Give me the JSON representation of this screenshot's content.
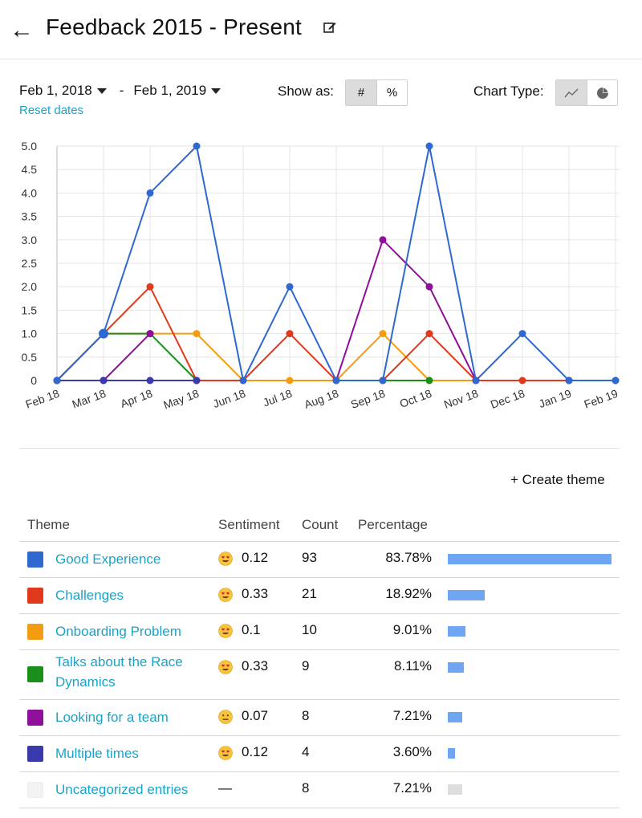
{
  "header": {
    "back_icon": "arrow-left-icon",
    "title": "Feedback 2015 - Present",
    "edit_icon": "edit-icon"
  },
  "controls": {
    "start_date": "Feb 1, 2018",
    "end_date": "Feb 1, 2019",
    "separator": "-",
    "reset_label": "Reset dates",
    "show_as_label": "Show as:",
    "show_as_options": [
      "#",
      "%"
    ],
    "show_as_selected": "#",
    "chart_type_label": "Chart Type:",
    "chart_type_options": [
      "line-chart-icon",
      "pie-chart-icon"
    ],
    "chart_type_selected": "line-chart-icon"
  },
  "chart_data": {
    "type": "line",
    "categories": [
      "Feb 18",
      "Mar 18",
      "Apr 18",
      "May 18",
      "Jun 18",
      "Jul 18",
      "Aug 18",
      "Sep 18",
      "Oct 18",
      "Nov 18",
      "Dec 18",
      "Jan 19",
      "Feb 19"
    ],
    "ylim": [
      0,
      5
    ],
    "yticks": [
      "0",
      "0.5",
      "1.0",
      "1.5",
      "2.0",
      "2.5",
      "3.0",
      "3.5",
      "4.0",
      "4.5",
      "5.0"
    ],
    "grid": true,
    "series": [
      {
        "color": "#f39c12",
        "values": [
          0,
          1,
          1,
          1,
          0,
          0,
          0,
          1,
          0,
          0,
          null,
          null,
          null
        ]
      },
      {
        "color": "#1a8f1a",
        "values": [
          0,
          1,
          1,
          0,
          null,
          null,
          null,
          0,
          0,
          null,
          null,
          null,
          null
        ]
      },
      {
        "color": "#8e0f9a",
        "values": [
          0,
          0,
          1,
          null,
          null,
          null,
          0,
          3,
          2,
          0,
          null,
          null,
          null
        ]
      },
      {
        "color": "#e0391b",
        "values": [
          0,
          1,
          2,
          0,
          0,
          1,
          0,
          0,
          1,
          0,
          0,
          0,
          null
        ]
      },
      {
        "color": "#3a3aad",
        "values": [
          0,
          0,
          0,
          0,
          null,
          null,
          null,
          null,
          null,
          0,
          null,
          0,
          0
        ]
      },
      {
        "color": "#2f68cf",
        "values": [
          0,
          1,
          4,
          5,
          0,
          2,
          0,
          0,
          5,
          0,
          1,
          0,
          0
        ]
      }
    ]
  },
  "themes": {
    "create_label": "+ Create theme",
    "headers": {
      "theme": "Theme",
      "sentiment": "Sentiment",
      "count": "Count",
      "percentage": "Percentage"
    },
    "rows": [
      {
        "name": "Good Experience",
        "color": "#2f68cf",
        "emoji": "heart-eyes-emoji",
        "sentiment": "0.12",
        "count": "93",
        "percentage": "83.78%",
        "share": 0.8378
      },
      {
        "name": "Challenges",
        "color": "#e0391b",
        "emoji": "heart-eyes-emoji",
        "sentiment": "0.33",
        "count": "21",
        "percentage": "18.92%",
        "share": 0.1892
      },
      {
        "name": "Onboarding Problem",
        "color": "#f39c12",
        "emoji": "heart-eyes-emoji",
        "sentiment": "0.1",
        "count": "10",
        "percentage": "9.01%",
        "share": 0.0901
      },
      {
        "name": "Talks about the Race Dynamics",
        "color": "#1a8f1a",
        "emoji": "heart-eyes-emoji",
        "sentiment": "0.33",
        "count": "9",
        "percentage": "8.11%",
        "share": 0.0811
      },
      {
        "name": "Looking for a team",
        "color": "#8e0f9a",
        "emoji": "neutral-face-emoji",
        "sentiment": "0.07",
        "count": "8",
        "percentage": "7.21%",
        "share": 0.0721
      },
      {
        "name": "Multiple times",
        "color": "#3a3aad",
        "emoji": "heart-eyes-emoji",
        "sentiment": "0.12",
        "count": "4",
        "percentage": "3.60%",
        "share": 0.036
      },
      {
        "name": "Uncategorized entries",
        "color": "#f3f3f3",
        "emoji": "",
        "sentiment": "—",
        "count": "8",
        "percentage": "7.21%",
        "share": 0.0721
      }
    ]
  }
}
